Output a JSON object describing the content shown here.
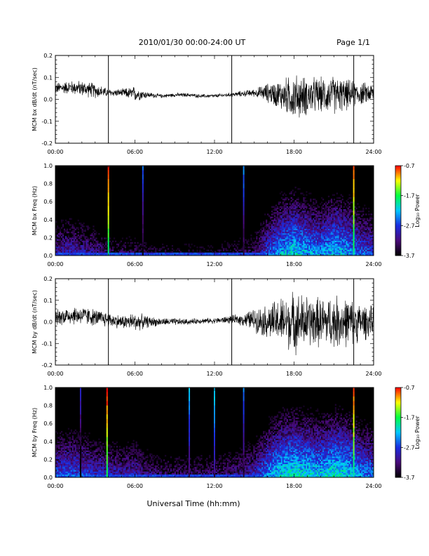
{
  "header": {
    "title": "2010/01/30  00:00-24:00 UT",
    "page": "Page 1/1"
  },
  "footer": {
    "xlabel": "Universal Time (hh:mm)"
  },
  "colorbar": {
    "label": "Log₁₀ Power",
    "ticks": [
      "-0.7",
      "-1.7",
      "-2.7",
      "-3.7"
    ],
    "range": [
      -3.7,
      -0.7
    ],
    "colors": [
      "#000000",
      "#4a0a7a",
      "#1a2ce0",
      "#00c8ff",
      "#00ff40",
      "#ffff00",
      "#ff0000"
    ]
  },
  "chart_data": [
    {
      "type": "line",
      "ylabel": "MCM bx dB/dt (nT/sec)",
      "xticks": [
        "00:00",
        "06:00",
        "12:00",
        "18:00",
        "24:00"
      ],
      "yticks": [
        "0.2",
        "0.1",
        "0.0",
        "-0.1",
        "-0.2"
      ],
      "xlim": [
        0,
        24
      ],
      "ylim": [
        -0.2,
        0.2
      ],
      "envelope_hours": [
        0,
        1,
        2,
        3,
        4,
        5,
        6,
        7,
        8,
        9,
        10,
        11,
        12,
        13,
        14,
        15,
        16,
        17,
        18,
        19,
        20,
        21,
        22,
        23,
        24
      ],
      "baseline": [
        0.05,
        0.055,
        0.05,
        0.04,
        0.03,
        0.03,
        0.025,
        0.02,
        0.015,
        0.02,
        0.02,
        0.015,
        0.015,
        0.02,
        0.025,
        0.03,
        0.03,
        0.02,
        0.01,
        0.015,
        0.02,
        0.02,
        0.02,
        0.025,
        0.03
      ],
      "amplitude": [
        0.03,
        0.035,
        0.04,
        0.04,
        0.02,
        0.02,
        0.04,
        0.015,
        0.01,
        0.01,
        0.01,
        0.01,
        0.01,
        0.01,
        0.015,
        0.02,
        0.05,
        0.08,
        0.12,
        0.1,
        0.09,
        0.1,
        0.08,
        0.06,
        0.05
      ],
      "spikes": [
        {
          "hour": 4.0,
          "min": -0.2,
          "max": 0.2
        },
        {
          "hour": 13.3,
          "min": -0.2,
          "max": 0.2
        },
        {
          "hour": 22.5,
          "min": -0.2,
          "max": 0.2
        }
      ]
    },
    {
      "type": "heatmap",
      "ylabel": "MCM bx Freq (Hz)",
      "xticks": [
        "00:00",
        "06:00",
        "12:00",
        "18:00",
        "24:00"
      ],
      "yticks": [
        "1.0",
        "0.8",
        "0.6",
        "0.4",
        "0.2",
        "0.0"
      ],
      "xlim": [
        0,
        24
      ],
      "ylim": [
        0,
        1
      ],
      "zlim": [
        -3.7,
        -0.7
      ],
      "activity_hours": [
        0,
        1,
        2,
        3,
        4,
        5,
        6,
        7,
        8,
        9,
        10,
        11,
        12,
        13,
        14,
        15,
        16,
        17,
        18,
        19,
        20,
        21,
        22,
        23,
        24
      ],
      "activity": [
        0.35,
        0.4,
        0.35,
        0.3,
        0.15,
        0.15,
        0.15,
        0.1,
        0.05,
        0.05,
        0.05,
        0.05,
        0.05,
        0.1,
        0.12,
        0.2,
        0.5,
        0.7,
        0.8,
        0.7,
        0.65,
        0.75,
        0.7,
        0.55,
        0.5
      ],
      "lines": [
        {
          "hour": 4.0,
          "power": -0.7
        },
        {
          "hour": 6.6,
          "power": -2.5
        },
        {
          "hour": 14.2,
          "power": -2.4
        },
        {
          "hour": 22.5,
          "power": -0.8
        }
      ]
    },
    {
      "type": "line",
      "ylabel": "MCM by dB/dt (nT/sec)",
      "xticks": [
        "00:00",
        "06:00",
        "12:00",
        "18:00",
        "24:00"
      ],
      "yticks": [
        "0.2",
        "0.1",
        "0.0",
        "-0.1",
        "-0.2"
      ],
      "xlim": [
        0,
        24
      ],
      "ylim": [
        -0.2,
        0.2
      ],
      "envelope_hours": [
        0,
        1,
        2,
        3,
        4,
        5,
        6,
        7,
        8,
        9,
        10,
        11,
        12,
        13,
        14,
        15,
        16,
        17,
        18,
        19,
        20,
        21,
        22,
        23,
        24
      ],
      "baseline": [
        0.02,
        0.03,
        0.03,
        0.02,
        0.01,
        0.0,
        0.0,
        0.0,
        0.0,
        0.0,
        0.0,
        0.005,
        0.005,
        0.01,
        0.01,
        0.01,
        0.0,
        0.0,
        0.0,
        0.0,
        0.0,
        0.0,
        0.0,
        0.0,
        0.0
      ],
      "amplitude": [
        0.04,
        0.05,
        0.05,
        0.045,
        0.04,
        0.035,
        0.05,
        0.03,
        0.02,
        0.02,
        0.015,
        0.015,
        0.015,
        0.02,
        0.03,
        0.06,
        0.09,
        0.13,
        0.16,
        0.14,
        0.13,
        0.14,
        0.13,
        0.1,
        0.08
      ],
      "spikes": [
        {
          "hour": 4.0,
          "min": -0.2,
          "max": 0.2
        },
        {
          "hour": 13.3,
          "min": -0.2,
          "max": 0.2
        },
        {
          "hour": 22.5,
          "min": -0.2,
          "max": 0.2
        }
      ]
    },
    {
      "type": "heatmap",
      "ylabel": "MCM by Freq (Hz)",
      "xticks": [
        "00:00",
        "06:00",
        "12:00",
        "18:00",
        "24:00"
      ],
      "yticks": [
        "1.0",
        "0.8",
        "0.6",
        "0.4",
        "0.2",
        "0.0"
      ],
      "xlim": [
        0,
        24
      ],
      "ylim": [
        0,
        1
      ],
      "zlim": [
        -3.7,
        -0.7
      ],
      "activity_hours": [
        0,
        1,
        2,
        3,
        4,
        5,
        6,
        7,
        8,
        9,
        10,
        11,
        12,
        13,
        14,
        15,
        16,
        17,
        18,
        19,
        20,
        21,
        22,
        23,
        24
      ],
      "activity": [
        0.5,
        0.55,
        0.5,
        0.45,
        0.4,
        0.35,
        0.4,
        0.25,
        0.2,
        0.2,
        0.2,
        0.2,
        0.2,
        0.25,
        0.3,
        0.4,
        0.65,
        0.8,
        0.85,
        0.8,
        0.75,
        0.85,
        0.8,
        0.65,
        0.6
      ],
      "lines": [
        {
          "hour": 1.9,
          "power": -2.8
        },
        {
          "hour": 3.9,
          "power": -0.7
        },
        {
          "hour": 10.1,
          "power": -2.2
        },
        {
          "hour": 12.0,
          "power": -2.1
        },
        {
          "hour": 14.2,
          "power": -2.4
        },
        {
          "hour": 22.5,
          "power": -0.8
        }
      ]
    }
  ]
}
